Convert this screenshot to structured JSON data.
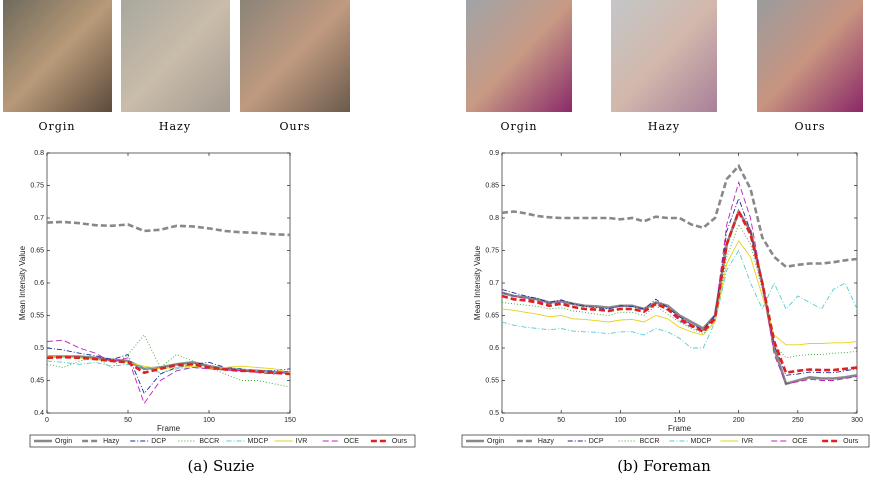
{
  "chart_data": [
    {
      "type": "line",
      "caption": "(a) Suzie",
      "image_captions": [
        "Orgin",
        "Hazy",
        "Ours"
      ],
      "xlabel": "Frame",
      "ylabel": "Mean Intensity Value",
      "x": [
        0,
        10,
        20,
        30,
        40,
        50,
        60,
        70,
        80,
        90,
        100,
        110,
        120,
        130,
        140,
        150
      ],
      "xlim": [
        0,
        150
      ],
      "xticks": [
        0,
        50,
        100,
        150
      ],
      "ylim": [
        0.4,
        0.8
      ],
      "yticks": [
        0.4,
        0.45,
        0.5,
        0.55,
        0.6,
        0.65,
        0.7,
        0.75,
        0.8
      ],
      "series": [
        {
          "name": "Orgin",
          "color": "#888888",
          "dash": "solid",
          "thick": true,
          "values": [
            0.487,
            0.487,
            0.487,
            0.485,
            0.482,
            0.48,
            0.468,
            0.47,
            0.475,
            0.478,
            0.472,
            0.468,
            0.466,
            0.465,
            0.463,
            0.462
          ]
        },
        {
          "name": "Hazy",
          "color": "#888888",
          "dash": "dashed",
          "thick": true,
          "values": [
            0.693,
            0.694,
            0.692,
            0.689,
            0.688,
            0.69,
            0.68,
            0.682,
            0.688,
            0.687,
            0.684,
            0.68,
            0.678,
            0.677,
            0.675,
            0.674
          ]
        },
        {
          "name": "DCP",
          "color": "#1a2a9a",
          "dash": "dashdot",
          "thick": false,
          "values": [
            0.5,
            0.497,
            0.492,
            0.488,
            0.482,
            0.49,
            0.43,
            0.46,
            0.47,
            0.475,
            0.478,
            0.47,
            0.468,
            0.465,
            0.465,
            0.468
          ]
        },
        {
          "name": "BCCR",
          "color": "#33aa33",
          "dash": "dotted",
          "thick": false,
          "values": [
            0.475,
            0.47,
            0.48,
            0.485,
            0.47,
            0.49,
            0.52,
            0.47,
            0.49,
            0.48,
            0.47,
            0.46,
            0.45,
            0.45,
            0.445,
            0.44
          ]
        },
        {
          "name": "MDCP",
          "color": "#55cccc",
          "dash": "dashdot",
          "thick": false,
          "values": [
            0.48,
            0.478,
            0.475,
            0.478,
            0.472,
            0.475,
            0.47,
            0.462,
            0.468,
            0.47,
            0.468,
            0.466,
            0.468,
            0.465,
            0.463,
            0.462
          ]
        },
        {
          "name": "IVR",
          "color": "#e6d21a",
          "dash": "solid",
          "thick": false,
          "values": [
            0.487,
            0.486,
            0.485,
            0.482,
            0.48,
            0.478,
            0.472,
            0.468,
            0.47,
            0.472,
            0.468,
            0.47,
            0.472,
            0.47,
            0.468,
            0.462
          ]
        },
        {
          "name": "OCE",
          "color": "#bb22bb",
          "dash": "dashed",
          "thick": false,
          "values": [
            0.51,
            0.512,
            0.5,
            0.492,
            0.478,
            0.485,
            0.415,
            0.45,
            0.465,
            0.47,
            0.468,
            0.466,
            0.465,
            0.462,
            0.46,
            0.465
          ]
        },
        {
          "name": "Ours",
          "color": "#e02020",
          "dash": "dashed",
          "thick": true,
          "values": [
            0.485,
            0.486,
            0.485,
            0.483,
            0.48,
            0.478,
            0.462,
            0.468,
            0.474,
            0.475,
            0.47,
            0.467,
            0.465,
            0.464,
            0.462,
            0.46
          ]
        }
      ]
    },
    {
      "type": "line",
      "caption": "(b) Foreman",
      "image_captions": [
        "Orgin",
        "Hazy",
        "Ours"
      ],
      "xlabel": "Frame",
      "ylabel": "Mean Intensity Value",
      "x": [
        0,
        10,
        20,
        30,
        40,
        50,
        60,
        70,
        80,
        90,
        100,
        110,
        120,
        130,
        140,
        150,
        160,
        170,
        180,
        190,
        200,
        210,
        220,
        230,
        240,
        250,
        260,
        270,
        280,
        290,
        300
      ],
      "xlim": [
        0,
        300
      ],
      "xticks": [
        0,
        50,
        100,
        150,
        200,
        250,
        300
      ],
      "ylim": [
        0.5,
        0.9
      ],
      "yticks": [
        0.5,
        0.55,
        0.6,
        0.65,
        0.7,
        0.75,
        0.8,
        0.85,
        0.9
      ],
      "series": [
        {
          "name": "Orgin",
          "color": "#888888",
          "dash": "solid",
          "thick": true,
          "values": [
            0.685,
            0.68,
            0.678,
            0.675,
            0.67,
            0.672,
            0.668,
            0.665,
            0.664,
            0.662,
            0.665,
            0.665,
            0.66,
            0.67,
            0.665,
            0.65,
            0.64,
            0.63,
            0.65,
            0.76,
            0.81,
            0.78,
            0.7,
            0.6,
            0.545,
            0.55,
            0.555,
            0.553,
            0.553,
            0.555,
            0.558
          ]
        },
        {
          "name": "Hazy",
          "color": "#888888",
          "dash": "dashed",
          "thick": true,
          "values": [
            0.808,
            0.81,
            0.807,
            0.803,
            0.801,
            0.8,
            0.8,
            0.8,
            0.8,
            0.8,
            0.798,
            0.8,
            0.795,
            0.802,
            0.8,
            0.8,
            0.79,
            0.785,
            0.8,
            0.86,
            0.88,
            0.845,
            0.77,
            0.74,
            0.725,
            0.728,
            0.73,
            0.73,
            0.732,
            0.735,
            0.737
          ]
        },
        {
          "name": "DCP",
          "color": "#1a2a9a",
          "dash": "dashdot",
          "thick": false,
          "values": [
            0.69,
            0.685,
            0.68,
            0.676,
            0.67,
            0.674,
            0.668,
            0.664,
            0.662,
            0.66,
            0.665,
            0.664,
            0.66,
            0.675,
            0.662,
            0.648,
            0.636,
            0.628,
            0.65,
            0.78,
            0.83,
            0.78,
            0.7,
            0.605,
            0.558,
            0.56,
            0.563,
            0.562,
            0.562,
            0.565,
            0.568
          ]
        },
        {
          "name": "BCCR",
          "color": "#33aa33",
          "dash": "dotted",
          "thick": false,
          "values": [
            0.67,
            0.668,
            0.666,
            0.664,
            0.66,
            0.662,
            0.657,
            0.655,
            0.652,
            0.65,
            0.655,
            0.655,
            0.65,
            0.665,
            0.652,
            0.64,
            0.63,
            0.622,
            0.64,
            0.74,
            0.79,
            0.76,
            0.69,
            0.605,
            0.585,
            0.588,
            0.59,
            0.59,
            0.592,
            0.593,
            0.595
          ]
        },
        {
          "name": "MDCP",
          "color": "#55cccc",
          "dash": "dashdot",
          "thick": false,
          "values": [
            0.64,
            0.635,
            0.632,
            0.63,
            0.628,
            0.63,
            0.626,
            0.625,
            0.624,
            0.622,
            0.625,
            0.625,
            0.62,
            0.63,
            0.625,
            0.615,
            0.6,
            0.6,
            0.64,
            0.72,
            0.75,
            0.7,
            0.66,
            0.7,
            0.66,
            0.68,
            0.67,
            0.66,
            0.69,
            0.7,
            0.66
          ]
        },
        {
          "name": "IVR",
          "color": "#e6d21a",
          "dash": "solid",
          "thick": false,
          "values": [
            0.66,
            0.658,
            0.655,
            0.652,
            0.648,
            0.65,
            0.645,
            0.644,
            0.642,
            0.64,
            0.643,
            0.644,
            0.64,
            0.65,
            0.645,
            0.632,
            0.625,
            0.62,
            0.64,
            0.73,
            0.765,
            0.74,
            0.68,
            0.62,
            0.605,
            0.605,
            0.607,
            0.607,
            0.608,
            0.608,
            0.61
          ]
        },
        {
          "name": "OCE",
          "color": "#bb22bb",
          "dash": "dashed",
          "thick": false,
          "values": [
            0.685,
            0.68,
            0.676,
            0.672,
            0.668,
            0.67,
            0.664,
            0.66,
            0.659,
            0.657,
            0.66,
            0.66,
            0.655,
            0.668,
            0.658,
            0.642,
            0.632,
            0.625,
            0.65,
            0.79,
            0.855,
            0.8,
            0.7,
            0.59,
            0.545,
            0.548,
            0.552,
            0.55,
            0.55,
            0.553,
            0.556
          ]
        },
        {
          "name": "Ours",
          "color": "#e02020",
          "dash": "dashed",
          "thick": true,
          "values": [
            0.68,
            0.675,
            0.673,
            0.67,
            0.665,
            0.668,
            0.663,
            0.66,
            0.659,
            0.657,
            0.66,
            0.66,
            0.656,
            0.668,
            0.66,
            0.645,
            0.635,
            0.625,
            0.645,
            0.76,
            0.81,
            0.775,
            0.7,
            0.61,
            0.562,
            0.565,
            0.567,
            0.566,
            0.566,
            0.568,
            0.57
          ]
        }
      ]
    }
  ]
}
